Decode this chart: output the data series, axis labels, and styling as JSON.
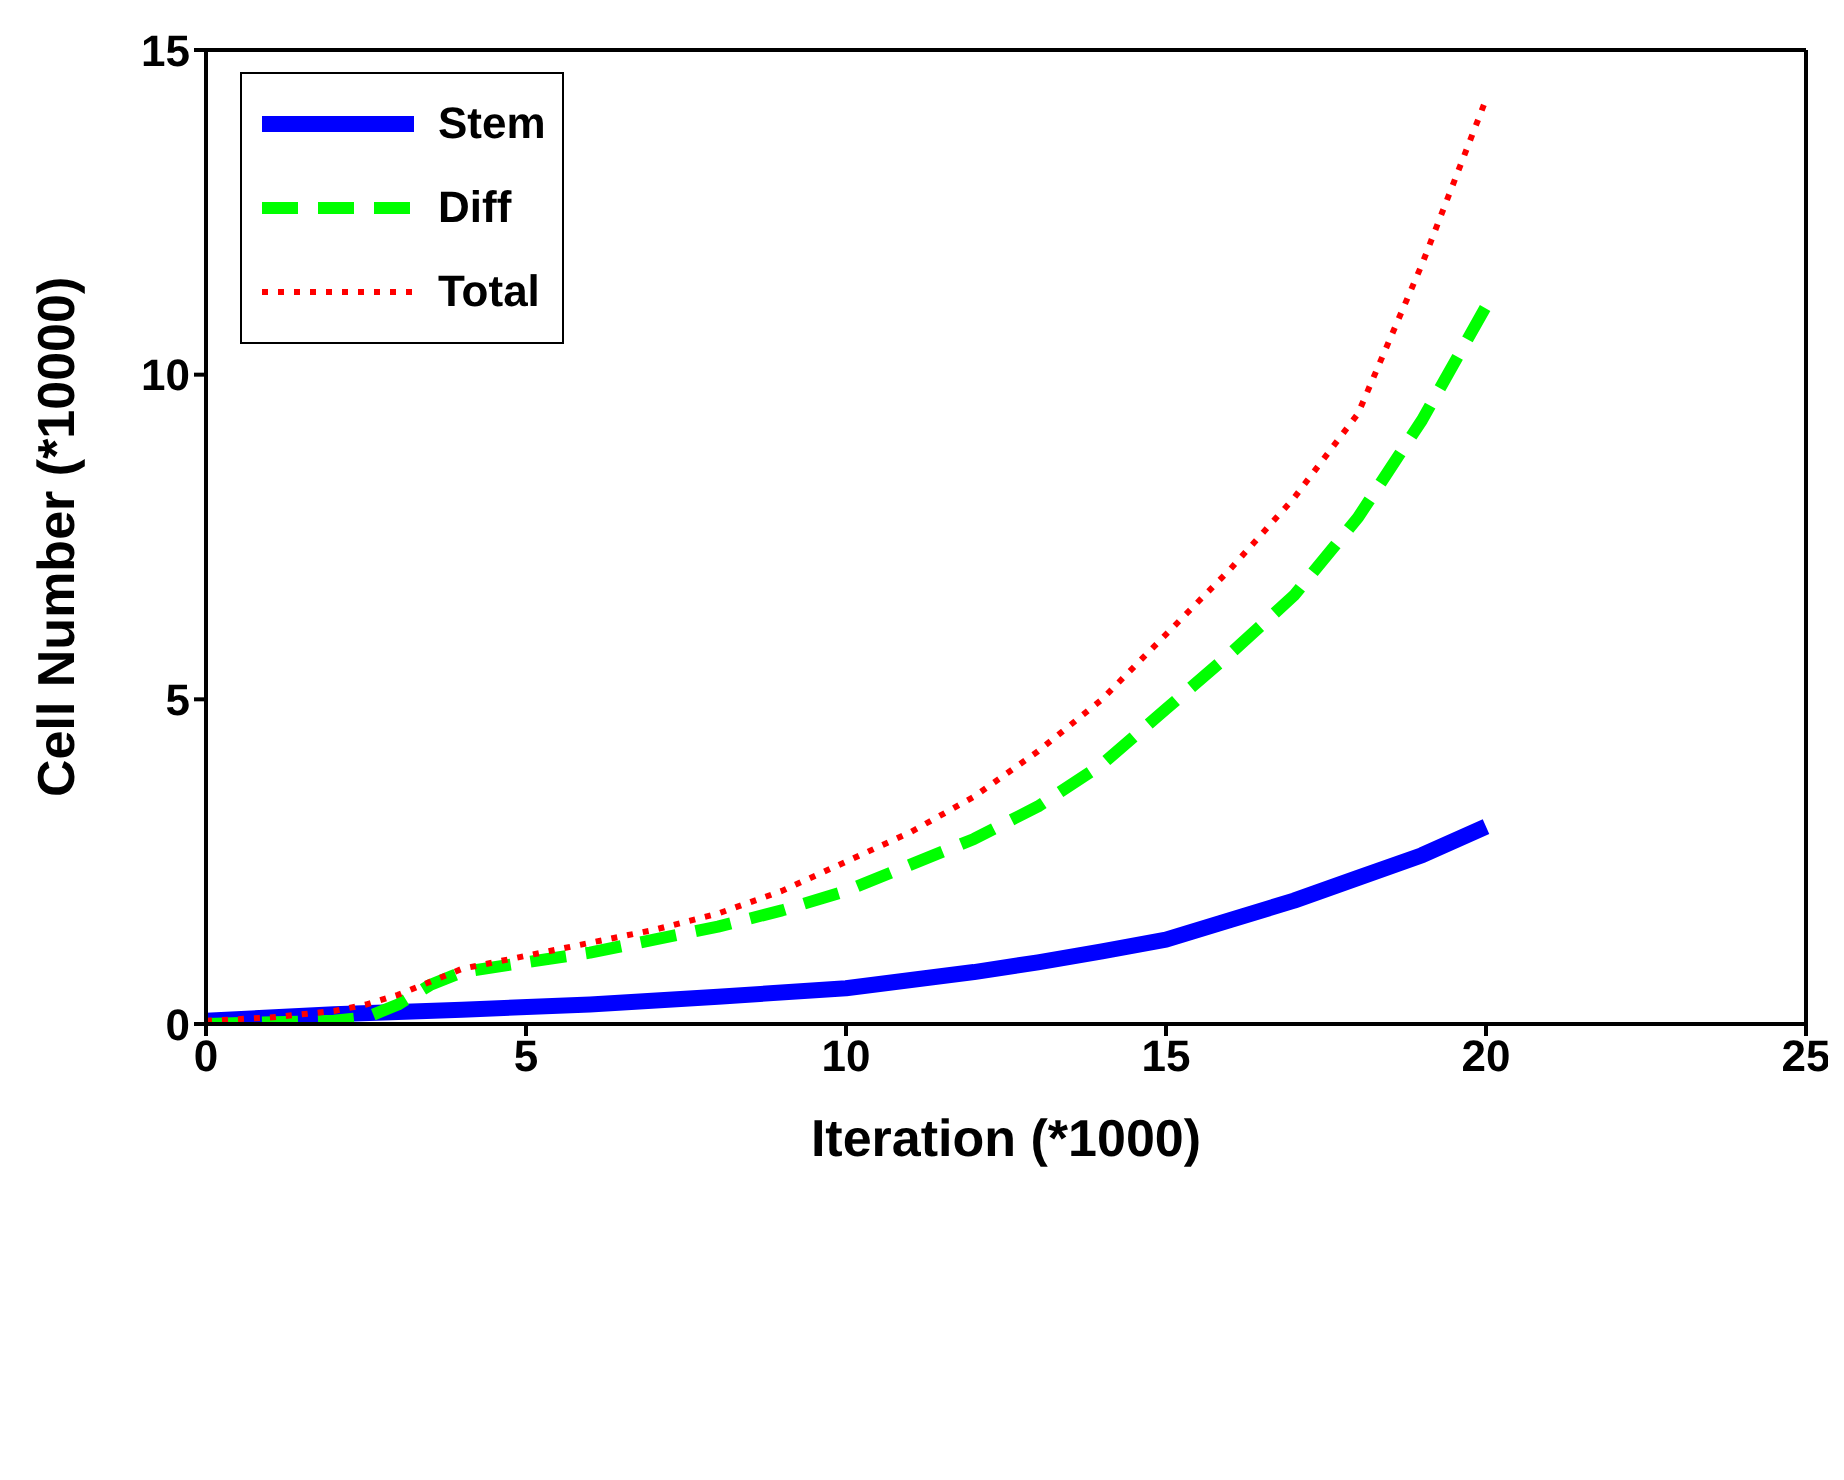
{
  "chart_data": {
    "type": "line",
    "xlabel": "Iteration (*1000)",
    "ylabel": "Cell Number (*10000)",
    "xlim": [
      0,
      25
    ],
    "xticks": [
      0,
      5,
      10,
      15,
      20,
      25
    ],
    "ylim": [
      0,
      15
    ],
    "yticks": [
      0,
      5,
      10,
      15
    ],
    "grid": false,
    "legend": "top left",
    "marker": "none",
    "series": [
      {
        "name": "Stem",
        "color": "#0000ff",
        "line_style": "solid",
        "x": [
          0,
          2,
          4,
          6,
          8,
          10,
          12,
          13,
          14,
          15,
          16,
          17,
          18,
          19,
          20
        ],
        "values": [
          0.05,
          0.15,
          0.22,
          0.3,
          0.42,
          0.55,
          0.8,
          0.95,
          1.12,
          1.3,
          1.6,
          1.9,
          2.25,
          2.6,
          3.04
        ]
      },
      {
        "name": "Diff",
        "color": "#00ff00",
        "line_style": "dashed",
        "x": [
          0,
          2,
          2.5,
          3,
          3.5,
          4,
          5,
          6,
          7,
          8,
          9,
          10,
          11,
          12,
          13,
          14,
          15,
          16,
          17,
          18,
          19,
          20
        ],
        "values": [
          0,
          0.05,
          0.1,
          0.3,
          0.6,
          0.8,
          0.95,
          1.1,
          1.3,
          1.5,
          1.75,
          2.05,
          2.45,
          2.85,
          3.35,
          4.0,
          4.85,
          5.7,
          6.6,
          7.8,
          9.3,
          11.05
        ]
      },
      {
        "name": "Total",
        "color": "#ff0000",
        "line_style": "dotted",
        "x": [
          0,
          1,
          2,
          2.5,
          3,
          4,
          5,
          6,
          7,
          8,
          9,
          10,
          11,
          12,
          13,
          14,
          15,
          16,
          17,
          18,
          19,
          20
        ],
        "values": [
          0.05,
          0.1,
          0.2,
          0.3,
          0.45,
          0.85,
          1.05,
          1.25,
          1.45,
          1.7,
          2.05,
          2.5,
          2.95,
          3.5,
          4.2,
          5.0,
          6.0,
          7.0,
          8.1,
          9.4,
          11.7,
          14.24
        ]
      }
    ]
  }
}
